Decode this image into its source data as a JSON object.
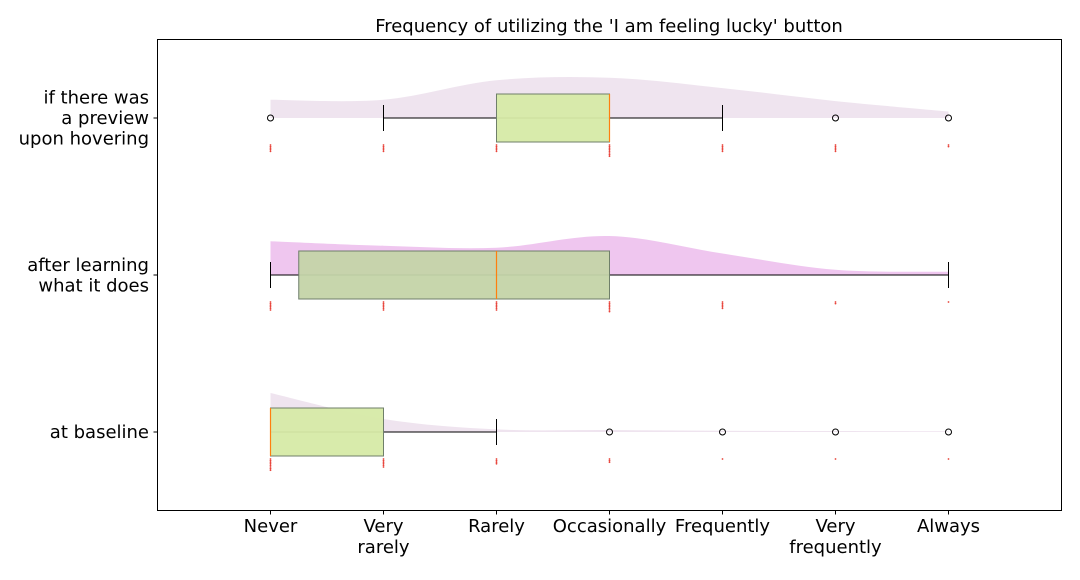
{
  "chart_data": {
    "type": "boxplot",
    "title": "Frequency of utilizing the 'I am feeling lucky' button",
    "x_ticks": [
      {
        "value": 0,
        "lines": [
          "Never"
        ]
      },
      {
        "value": 1,
        "lines": [
          "Very",
          "rarely"
        ]
      },
      {
        "value": 2,
        "lines": [
          "Rarely"
        ]
      },
      {
        "value": 3,
        "lines": [
          "Occasionally"
        ]
      },
      {
        "value": 4,
        "lines": [
          "Frequently"
        ]
      },
      {
        "value": 5,
        "lines": [
          "Very",
          "frequently"
        ]
      },
      {
        "value": 6,
        "lines": [
          "Always"
        ]
      }
    ],
    "xlim": [
      -1,
      7
    ],
    "grid": false,
    "colors": {
      "box_fill": "#d6eaa6",
      "box_fill_mid": "#c4d4a8",
      "box_edge": "#6f7f6a",
      "median": "#ff7f0e",
      "violin_light": "#eadbea",
      "violin_mid": "#e9b3e9",
      "points": "#e8453c"
    },
    "series": [
      {
        "label_lines": [
          "if there was",
          "a preview",
          "upon hovering"
        ],
        "q1": 2,
        "median": 3,
        "q3": 3,
        "whisker_low": 1,
        "whisker_high": 4,
        "fliers": [
          0,
          5,
          6
        ],
        "density": [
          [
            0,
            0.28
          ],
          [
            1,
            0.28
          ],
          [
            2,
            0.58
          ],
          [
            3,
            0.62
          ],
          [
            4,
            0.46
          ],
          [
            5,
            0.26
          ],
          [
            6,
            0.1
          ]
        ],
        "points": [
          [
            0,
            5
          ],
          [
            1,
            5
          ],
          [
            2,
            5
          ],
          [
            3,
            8
          ],
          [
            4,
            5
          ],
          [
            5,
            5
          ],
          [
            6,
            2
          ]
        ]
      },
      {
        "label_lines": [
          "after learning",
          "what it does"
        ],
        "q1": 0.25,
        "median": 2,
        "q3": 3,
        "whisker_low": 0,
        "whisker_high": 6,
        "fliers": [],
        "density": [
          [
            0,
            0.52
          ],
          [
            1,
            0.45
          ],
          [
            2,
            0.42
          ],
          [
            3,
            0.6
          ],
          [
            4,
            0.33
          ],
          [
            5,
            0.08
          ],
          [
            6,
            0.05
          ]
        ],
        "points": [
          [
            0,
            6
          ],
          [
            1,
            6
          ],
          [
            2,
            6
          ],
          [
            3,
            7
          ],
          [
            4,
            5
          ],
          [
            5,
            2
          ],
          [
            6,
            1
          ]
        ]
      },
      {
        "label_lines": [
          "at baseline"
        ],
        "q1": 0,
        "median": 0,
        "q3": 1,
        "whisker_low": 0,
        "whisker_high": 2,
        "fliers": [
          3,
          4,
          5,
          6
        ],
        "density": [
          [
            0,
            0.6
          ],
          [
            1,
            0.2
          ],
          [
            2,
            0.04
          ],
          [
            3,
            0.03
          ],
          [
            4,
            0.02
          ],
          [
            5,
            0.015
          ],
          [
            6,
            0.01
          ]
        ],
        "points": [
          [
            0,
            8
          ],
          [
            1,
            6
          ],
          [
            2,
            4
          ],
          [
            3,
            3
          ],
          [
            4,
            1
          ],
          [
            5,
            1
          ],
          [
            6,
            1
          ]
        ]
      }
    ]
  }
}
